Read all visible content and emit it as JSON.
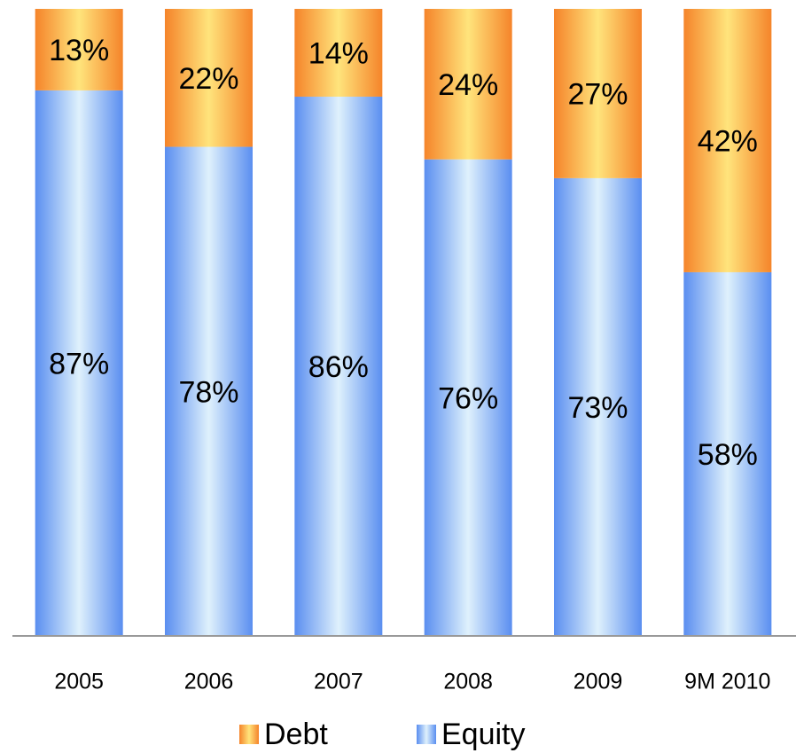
{
  "chart_data": {
    "type": "stacked_bar",
    "categories": [
      "2005",
      "2006",
      "2007",
      "2008",
      "2009",
      "9M 2010"
    ],
    "series": [
      {
        "name": "Equity",
        "color": "#5a8ef0",
        "values": [
          87,
          78,
          86,
          76,
          73,
          58
        ],
        "value_labels": [
          "87%",
          "78%",
          "86%",
          "76%",
          "73%",
          "58%"
        ]
      },
      {
        "name": "Debt",
        "color": "#f5842a",
        "values": [
          13,
          22,
          14,
          24,
          27,
          42
        ],
        "value_labels": [
          "13%",
          "22%",
          "14%",
          "24%",
          "27%",
          "42%"
        ]
      }
    ],
    "ylim": [
      0,
      100
    ],
    "legend": "bottom"
  }
}
